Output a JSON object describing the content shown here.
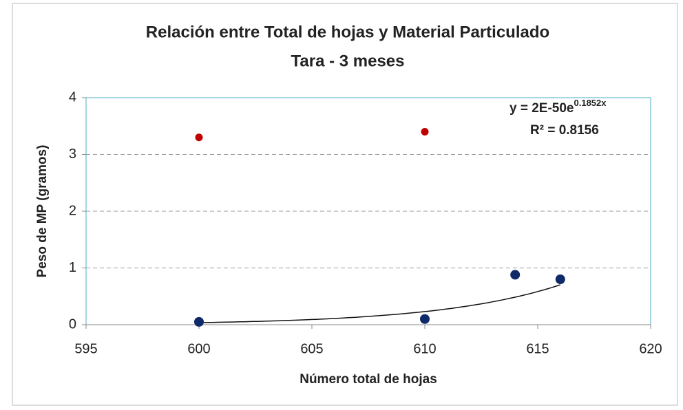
{
  "chart_data": {
    "type": "scatter",
    "title": "Relación entre Total de hojas y Material Particulado",
    "subtitle": "Tara - 3 meses",
    "x_label": "Número total de hojas",
    "y_label": "Peso de MP (gramos)",
    "xlim": [
      595,
      620
    ],
    "xticks": [
      595,
      600,
      605,
      610,
      615,
      620
    ],
    "ylim": [
      0,
      4
    ],
    "yticks": [
      0,
      1,
      2,
      3,
      4
    ],
    "grid": true,
    "series": [
      {
        "color": "#c00000",
        "x": [
          600,
          610
        ],
        "values": [
          3.3,
          3.4
        ]
      },
      {
        "color": "#0f2a68",
        "x": [
          600,
          610,
          614,
          616
        ],
        "values": [
          0.05,
          0.1,
          0.88,
          0.8
        ]
      }
    ],
    "trendline": {
      "type": "exponential",
      "coefficients": [
        2e-50,
        0.1852
      ],
      "equation": "y = 2E-50e",
      "equation_exponent": "0.1852x",
      "r_squared": "R² = 0.8156"
    }
  }
}
